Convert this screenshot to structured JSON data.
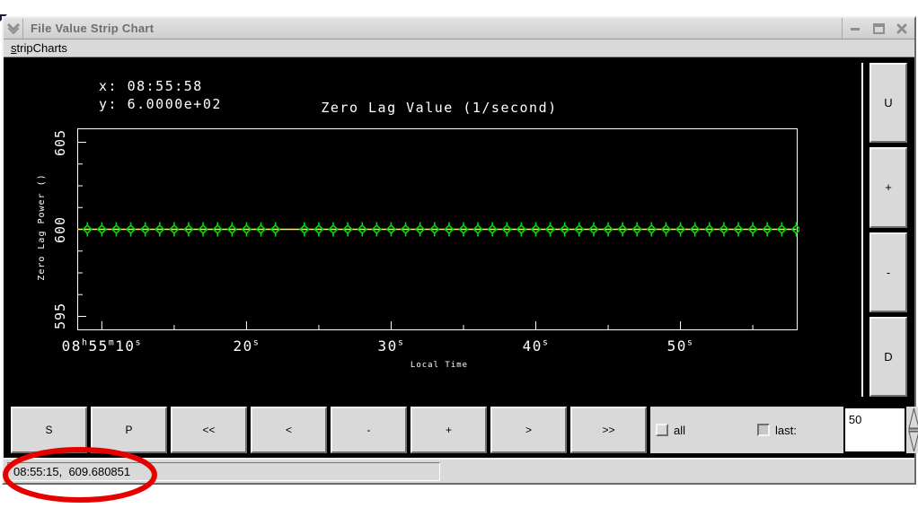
{
  "window": {
    "title": "File Value Strip Chart",
    "controls": {
      "minimize": "minimize",
      "maximize": "maximize",
      "close": "close"
    }
  },
  "menu": {
    "items": [
      {
        "label": "stripCharts",
        "mnemonic_index": 0
      }
    ]
  },
  "chart": {
    "readout": {
      "x_line": "x: 08:55:58",
      "y_line": "y: 6.0000e+02"
    },
    "title": "Zero Lag Value (1/second)",
    "y_axis_label": "Zero Lag Power ()",
    "x_axis_label": "Local Time"
  },
  "chart_data": {
    "type": "line",
    "title": "Zero Lag Value (1/second)",
    "xlabel": "Local Time",
    "ylabel": "Zero Lag Power ()",
    "x_unit": "seconds after 08:55:00",
    "xlim": [
      8.3,
      58.1
    ],
    "ylim": [
      594.2,
      605.8
    ],
    "y_ticks_major": [
      605,
      600,
      595
    ],
    "y_tick_minor_step": 1.25,
    "x_ticks_major": [
      10,
      20,
      30,
      40,
      50
    ],
    "x_ticks_minor": [
      15,
      25,
      35,
      45,
      55
    ],
    "x_tick_labels": [
      "08h55m10s",
      "20s",
      "30s",
      "40s",
      "50s"
    ],
    "x_tick_label_segments": [
      [
        {
          "t": "08"
        },
        {
          "t": "h",
          "sup": true
        },
        {
          "t": "55"
        },
        {
          "t": "m",
          "sup": true
        },
        {
          "t": "10"
        },
        {
          "t": "s",
          "sup": true
        }
      ],
      [
        {
          "t": "20"
        },
        {
          "t": "s",
          "sup": true
        }
      ],
      [
        {
          "t": "30"
        },
        {
          "t": "s",
          "sup": true
        }
      ],
      [
        {
          "t": "40"
        },
        {
          "t": "s",
          "sup": true
        }
      ],
      [
        {
          "t": "50"
        },
        {
          "t": "s",
          "sup": true
        }
      ]
    ],
    "constant_value": 600,
    "x_start": 8,
    "x_end": 58,
    "x_step": 1,
    "missing_x": [
      23
    ],
    "x_seconds": [
      8,
      9,
      10,
      11,
      12,
      13,
      14,
      15,
      16,
      17,
      18,
      19,
      20,
      21,
      22,
      24,
      25,
      26,
      27,
      28,
      29,
      30,
      31,
      32,
      33,
      34,
      35,
      36,
      37,
      38,
      39,
      40,
      41,
      42,
      43,
      44,
      45,
      46,
      47,
      48,
      49,
      50,
      51,
      52,
      53,
      54,
      55,
      56,
      57,
      58
    ],
    "line_color": "#ffff00",
    "marker_color": "#00dd00",
    "marker": "open-diamond-with-spikes",
    "plot_fg": "#ffffff",
    "plot_bg": "#000000",
    "grid": false,
    "legend": false
  },
  "controls_bottom": {
    "buttons": [
      "S",
      "P",
      "<<",
      "<",
      "-",
      "+",
      ">",
      ">>"
    ],
    "checkbox_all": {
      "label": "all",
      "checked": false
    },
    "checkbox_last": {
      "label": "last:",
      "checked": true
    },
    "last_value": "50"
  },
  "controls_right": {
    "buttons": [
      "U",
      "+",
      "-",
      "D"
    ]
  },
  "status_bar": {
    "text": "08:55:15,  609.680851"
  },
  "annotation": {
    "shape": "ellipse",
    "color": "#e60000",
    "meaning": "red circle highlighting status readout"
  }
}
